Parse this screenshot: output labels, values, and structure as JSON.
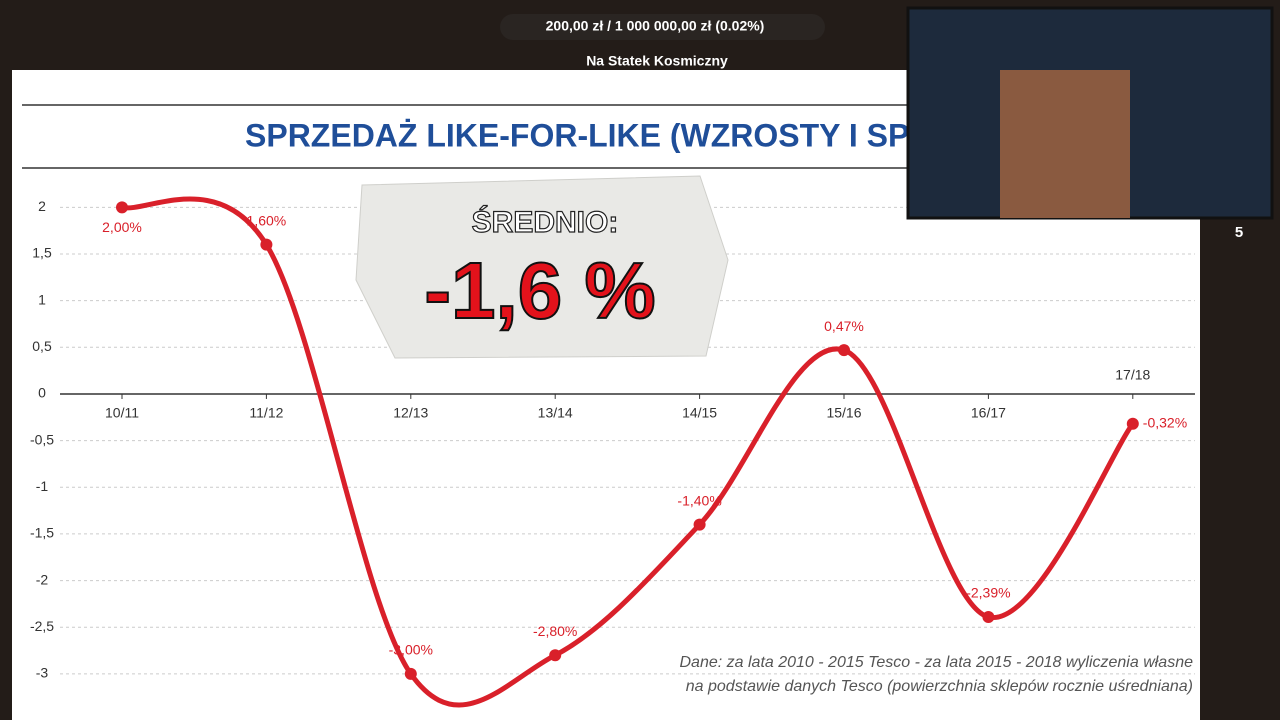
{
  "overlay": {
    "goal": "200,00 zł / 1 000 000,00 zł (0.02%)",
    "goal_name": "Na Statek Kosmiczny",
    "counter": "5"
  },
  "chart_data": {
    "type": "line",
    "title": "SPRZEDAŻ LIKE-FOR-LIKE (WZROSTY I SPA",
    "categories": [
      "10/11",
      "11/12",
      "12/13",
      "13/14",
      "14/15",
      "15/16",
      "16/17",
      "17/18"
    ],
    "series": [
      {
        "name": "Sprzedaż like-for-like",
        "color": "#d9202a",
        "values": [
          2.0,
          1.6,
          -3.0,
          -2.8,
          -1.4,
          0.47,
          -2.39,
          -0.32
        ],
        "value_labels": [
          "2,00%",
          "1,60%",
          "-3,00%",
          "-2,80%",
          "-1,40%",
          "0,47%",
          "-2,39%",
          "-0,32%"
        ]
      }
    ],
    "ylim": [
      -3.28,
      2.4
    ],
    "yticks": [
      -3,
      {
        "value": -2.5,
        "label": "-2,5"
      },
      -2,
      {
        "value": -1.5,
        "label": "-1,5"
      },
      -1,
      {
        "value": -0.5,
        "label": "-0,5"
      },
      0,
      {
        "value": 0.5,
        "label": "0,5"
      },
      1,
      {
        "value": 1.5,
        "label": "1,5"
      },
      2
    ],
    "grid": true,
    "annotations": {
      "callout_label": "ŚREDNIO:",
      "callout_value": "-1,6 %",
      "source_line1": "Dane: za lata 2010 - 2015 Tesco - za lata 2015 - 2018 wyliczenia własne",
      "source_line2": "na podstawie danych Tesco (powierzchnia sklepów rocznie uśredniana)"
    }
  }
}
